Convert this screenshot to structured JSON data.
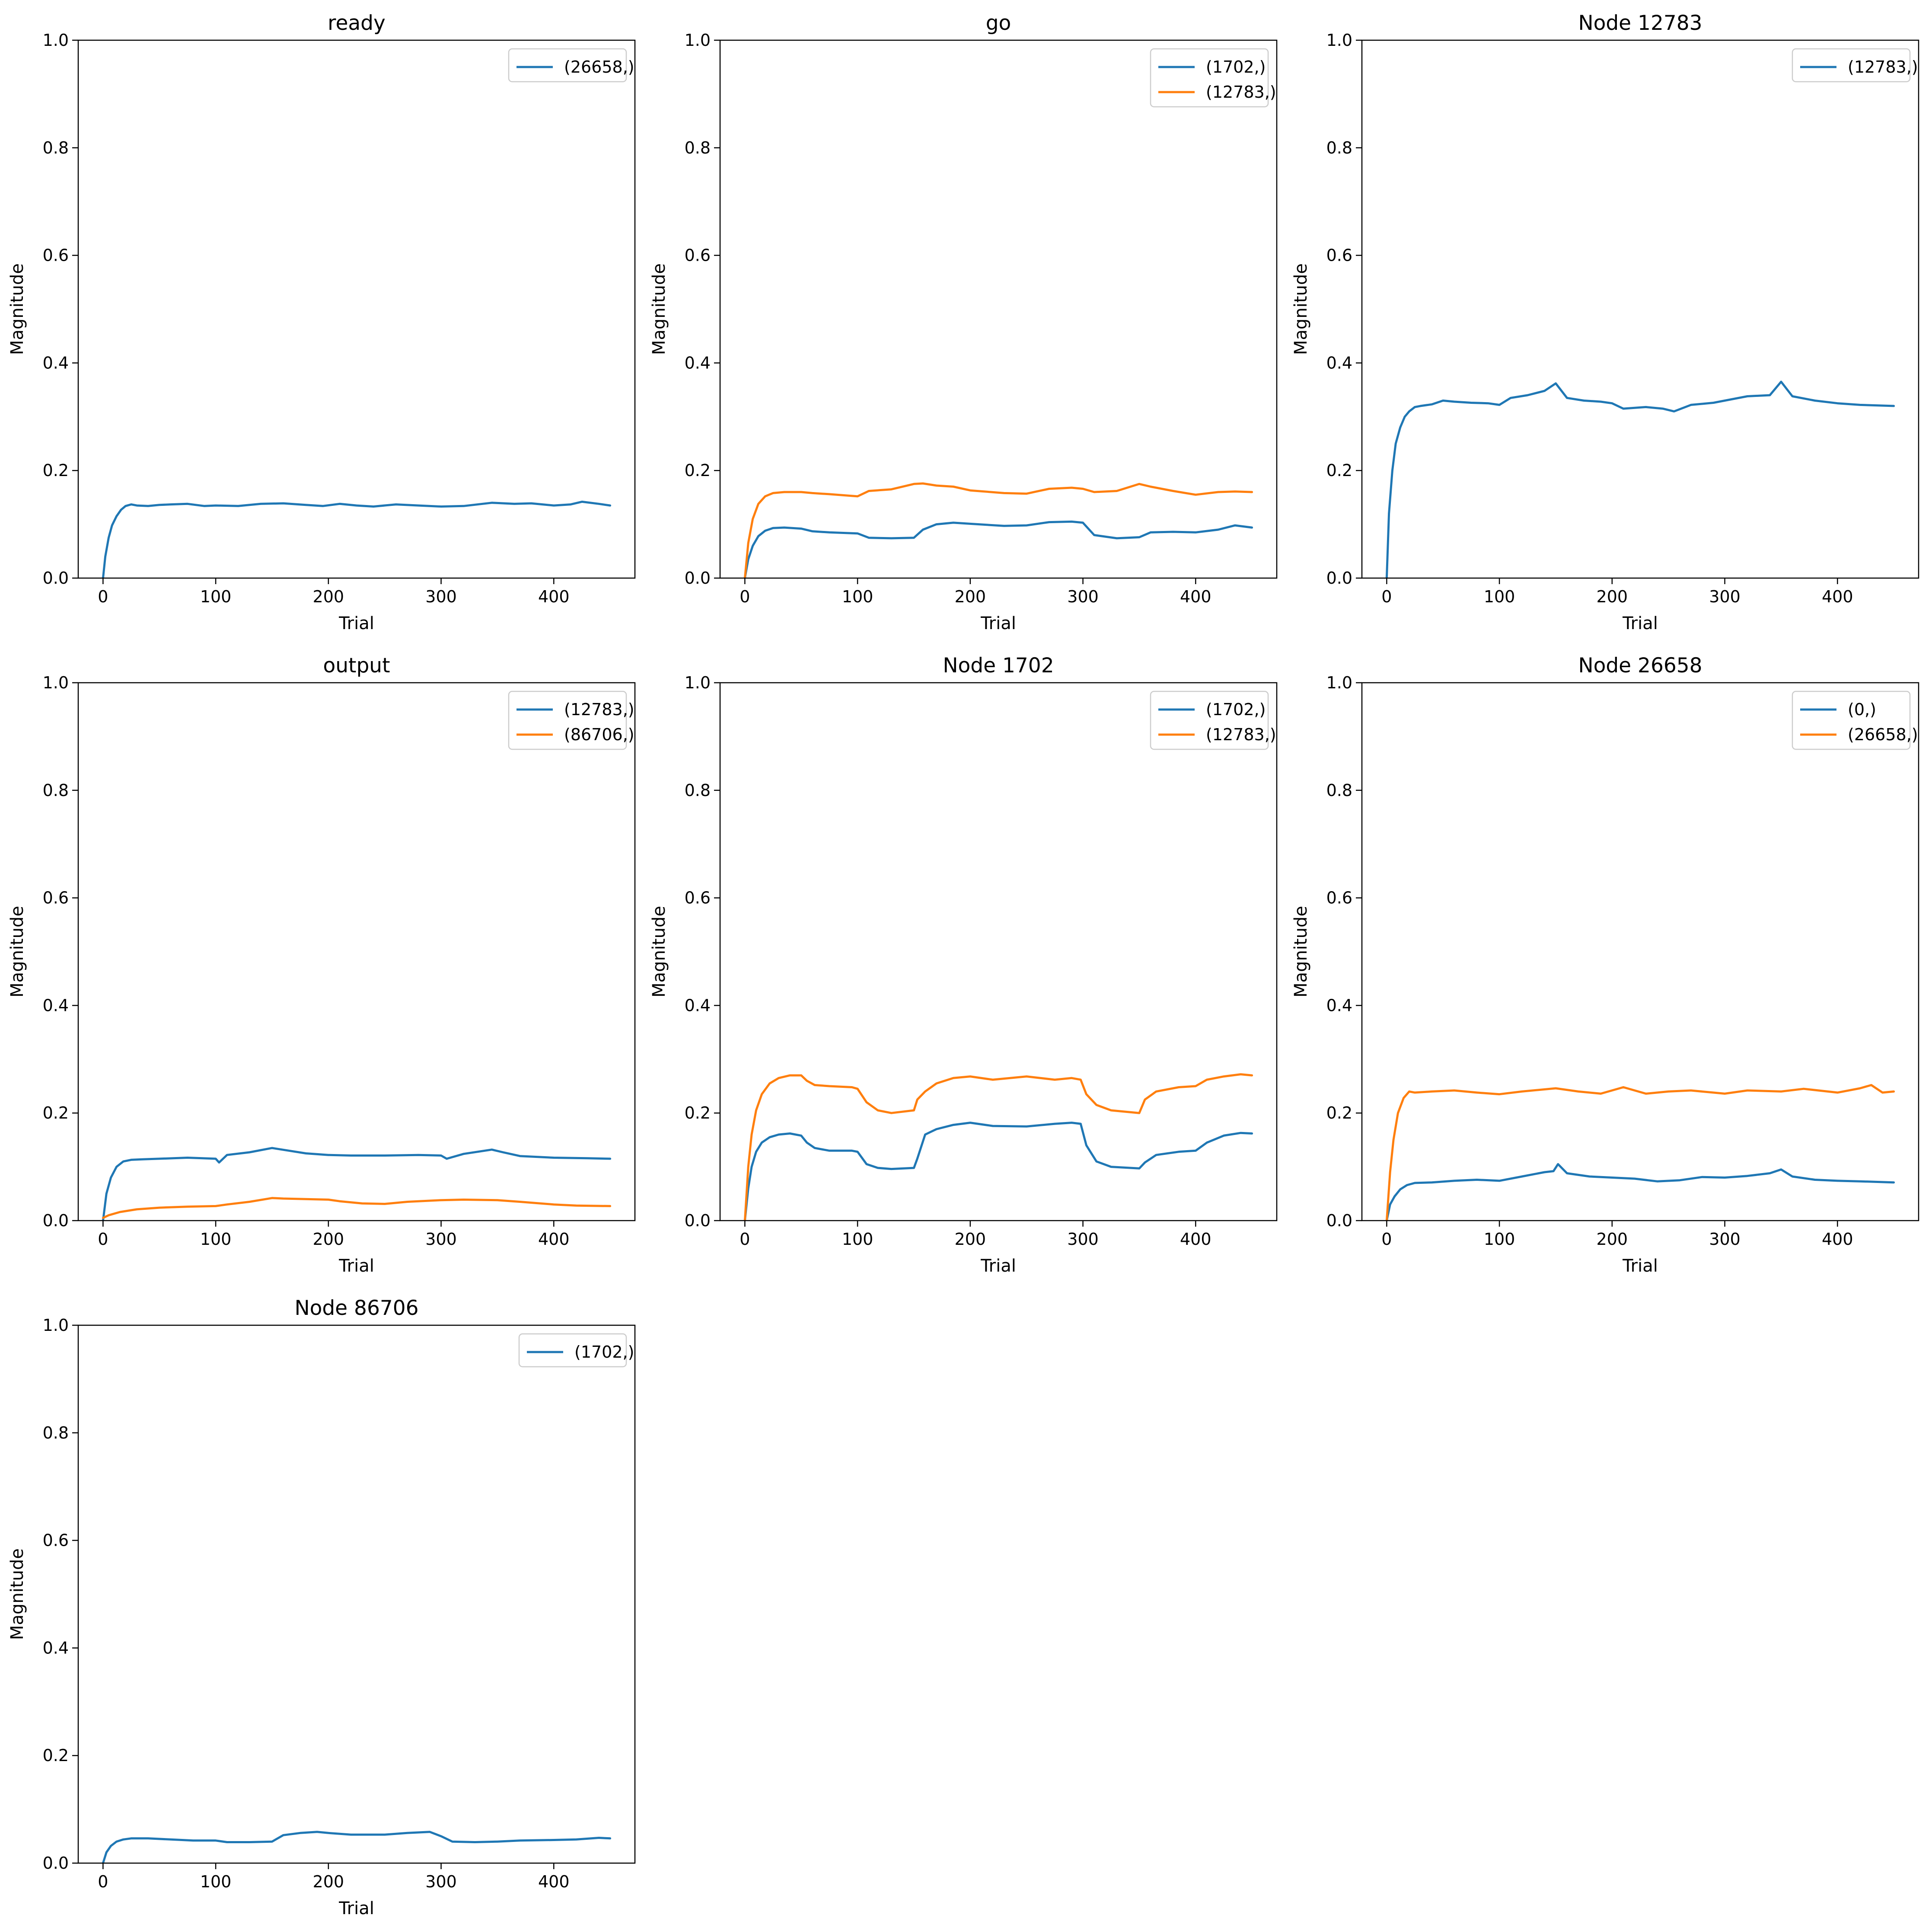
{
  "figure": {
    "colors": {
      "series_1": "#1f77b4",
      "series_2": "#ff7f0e",
      "axes": "#000000",
      "legend_border": "#cccccc"
    }
  },
  "chart_data": [
    {
      "type": "line",
      "title": "ready",
      "xlabel": "Trial",
      "ylabel": "Magnitude",
      "xlim": [
        -22,
        472
      ],
      "ylim": [
        0,
        1
      ],
      "xticks": [
        0,
        100,
        200,
        300,
        400
      ],
      "yticks": [
        0.0,
        0.2,
        0.4,
        0.6,
        0.8,
        1.0
      ],
      "ytick_labels": [
        "0.0",
        "0.2",
        "0.4",
        "0.6",
        "0.8",
        "1.0"
      ],
      "grid": false,
      "legend_position": "upper right",
      "series": [
        {
          "name": "(26658,)",
          "color": "#1f77b4",
          "x": [
            0,
            2,
            5,
            8,
            12,
            16,
            20,
            25,
            30,
            40,
            50,
            60,
            75,
            90,
            100,
            120,
            140,
            160,
            180,
            195,
            210,
            225,
            240,
            260,
            280,
            300,
            320,
            345,
            365,
            380,
            400,
            415,
            425,
            440,
            450
          ],
          "y": [
            0.0,
            0.04,
            0.075,
            0.098,
            0.115,
            0.127,
            0.134,
            0.137,
            0.135,
            0.134,
            0.136,
            0.137,
            0.138,
            0.134,
            0.135,
            0.134,
            0.138,
            0.139,
            0.136,
            0.134,
            0.138,
            0.135,
            0.133,
            0.137,
            0.135,
            0.133,
            0.134,
            0.14,
            0.138,
            0.139,
            0.135,
            0.137,
            0.142,
            0.138,
            0.135
          ]
        }
      ]
    },
    {
      "type": "line",
      "title": "go",
      "xlabel": "Trial",
      "ylabel": "Magnitude",
      "xlim": [
        -22,
        472
      ],
      "ylim": [
        0,
        1
      ],
      "xticks": [
        0,
        100,
        200,
        300,
        400
      ],
      "yticks": [
        0.0,
        0.2,
        0.4,
        0.6,
        0.8,
        1.0
      ],
      "ytick_labels": [
        "0.0",
        "0.2",
        "0.4",
        "0.6",
        "0.8",
        "1.0"
      ],
      "grid": false,
      "legend_position": "upper right",
      "series": [
        {
          "name": "(1702,)",
          "color": "#1f77b4",
          "x": [
            0,
            3,
            7,
            12,
            18,
            25,
            35,
            50,
            60,
            75,
            100,
            110,
            130,
            150,
            158,
            170,
            185,
            200,
            230,
            250,
            270,
            290,
            300,
            310,
            330,
            350,
            360,
            380,
            400,
            420,
            435,
            450
          ],
          "y": [
            0.0,
            0.035,
            0.06,
            0.078,
            0.088,
            0.093,
            0.094,
            0.092,
            0.087,
            0.085,
            0.083,
            0.075,
            0.074,
            0.075,
            0.09,
            0.1,
            0.103,
            0.101,
            0.097,
            0.098,
            0.104,
            0.105,
            0.103,
            0.08,
            0.074,
            0.076,
            0.085,
            0.086,
            0.085,
            0.09,
            0.098,
            0.094
          ]
        },
        {
          "name": "(12783,)",
          "color": "#ff7f0e",
          "x": [
            0,
            3,
            7,
            12,
            18,
            25,
            35,
            50,
            60,
            75,
            100,
            110,
            130,
            150,
            158,
            170,
            185,
            200,
            230,
            250,
            270,
            290,
            300,
            310,
            330,
            350,
            360,
            380,
            400,
            420,
            435,
            450
          ],
          "y": [
            0.0,
            0.065,
            0.11,
            0.138,
            0.152,
            0.158,
            0.16,
            0.16,
            0.158,
            0.156,
            0.152,
            0.162,
            0.165,
            0.175,
            0.176,
            0.172,
            0.17,
            0.163,
            0.158,
            0.157,
            0.166,
            0.168,
            0.166,
            0.16,
            0.162,
            0.175,
            0.17,
            0.162,
            0.155,
            0.16,
            0.161,
            0.16
          ]
        }
      ]
    },
    {
      "type": "line",
      "title": "Node 12783",
      "xlabel": "Trial",
      "ylabel": "Magnitude",
      "xlim": [
        -22,
        472
      ],
      "ylim": [
        0,
        1
      ],
      "xticks": [
        0,
        100,
        200,
        300,
        400
      ],
      "yticks": [
        0.0,
        0.2,
        0.4,
        0.6,
        0.8,
        1.0
      ],
      "ytick_labels": [
        "0.0",
        "0.2",
        "0.4",
        "0.6",
        "0.8",
        "1.0"
      ],
      "grid": false,
      "legend_position": "upper right",
      "series": [
        {
          "name": "(12783,)",
          "color": "#1f77b4",
          "x": [
            0,
            2,
            5,
            8,
            12,
            16,
            20,
            25,
            30,
            40,
            50,
            60,
            75,
            90,
            100,
            110,
            125,
            140,
            150,
            160,
            175,
            190,
            200,
            210,
            230,
            245,
            255,
            270,
            290,
            300,
            320,
            340,
            350,
            360,
            380,
            400,
            420,
            450
          ],
          "y": [
            0.0,
            0.12,
            0.2,
            0.25,
            0.28,
            0.3,
            0.31,
            0.318,
            0.32,
            0.323,
            0.33,
            0.328,
            0.326,
            0.325,
            0.322,
            0.335,
            0.34,
            0.348,
            0.362,
            0.335,
            0.33,
            0.328,
            0.325,
            0.315,
            0.318,
            0.315,
            0.31,
            0.322,
            0.326,
            0.33,
            0.338,
            0.34,
            0.365,
            0.338,
            0.33,
            0.325,
            0.322,
            0.32
          ]
        }
      ]
    },
    {
      "type": "line",
      "title": "output",
      "xlabel": "Trial",
      "ylabel": "Magnitude",
      "xlim": [
        -22,
        472
      ],
      "ylim": [
        0,
        1
      ],
      "xticks": [
        0,
        100,
        200,
        300,
        400
      ],
      "yticks": [
        0.0,
        0.2,
        0.4,
        0.6,
        0.8,
        1.0
      ],
      "ytick_labels": [
        "0.0",
        "0.2",
        "0.4",
        "0.6",
        "0.8",
        "1.0"
      ],
      "grid": false,
      "legend_position": "upper right",
      "series": [
        {
          "name": "(12783,)",
          "color": "#1f77b4",
          "x": [
            0,
            3,
            7,
            12,
            18,
            25,
            35,
            50,
            75,
            100,
            103,
            110,
            130,
            150,
            165,
            180,
            200,
            220,
            250,
            280,
            300,
            305,
            320,
            345,
            355,
            370,
            400,
            430,
            450
          ],
          "y": [
            0.0,
            0.05,
            0.08,
            0.1,
            0.11,
            0.113,
            0.114,
            0.115,
            0.117,
            0.115,
            0.108,
            0.122,
            0.127,
            0.135,
            0.13,
            0.125,
            0.122,
            0.121,
            0.121,
            0.122,
            0.121,
            0.115,
            0.124,
            0.132,
            0.127,
            0.12,
            0.117,
            0.116,
            0.115
          ]
        },
        {
          "name": "(86706,)",
          "color": "#ff7f0e",
          "x": [
            0,
            5,
            15,
            30,
            50,
            75,
            100,
            110,
            130,
            150,
            160,
            180,
            200,
            210,
            230,
            250,
            270,
            300,
            320,
            350,
            370,
            400,
            420,
            450
          ],
          "y": [
            0.005,
            0.01,
            0.016,
            0.021,
            0.024,
            0.026,
            0.027,
            0.03,
            0.035,
            0.042,
            0.041,
            0.04,
            0.039,
            0.036,
            0.032,
            0.031,
            0.035,
            0.038,
            0.039,
            0.038,
            0.035,
            0.03,
            0.028,
            0.027
          ]
        }
      ]
    },
    {
      "type": "line",
      "title": "Node 1702",
      "xlabel": "Trial",
      "ylabel": "Magnitude",
      "xlim": [
        -22,
        472
      ],
      "ylim": [
        0,
        1
      ],
      "xticks": [
        0,
        100,
        200,
        300,
        400
      ],
      "yticks": [
        0.0,
        0.2,
        0.4,
        0.6,
        0.8,
        1.0
      ],
      "ytick_labels": [
        "0.0",
        "0.2",
        "0.4",
        "0.6",
        "0.8",
        "1.0"
      ],
      "grid": false,
      "legend_position": "upper right",
      "series": [
        {
          "name": "(1702,)",
          "color": "#1f77b4",
          "x": [
            0,
            3,
            6,
            10,
            15,
            22,
            30,
            40,
            50,
            55,
            62,
            75,
            95,
            100,
            108,
            118,
            130,
            150,
            153,
            160,
            170,
            185,
            200,
            220,
            250,
            275,
            290,
            298,
            303,
            312,
            325,
            350,
            355,
            365,
            385,
            400,
            410,
            425,
            440,
            450
          ],
          "y": [
            0.0,
            0.06,
            0.1,
            0.128,
            0.145,
            0.155,
            0.16,
            0.162,
            0.158,
            0.145,
            0.135,
            0.13,
            0.13,
            0.128,
            0.105,
            0.098,
            0.096,
            0.098,
            0.115,
            0.16,
            0.17,
            0.178,
            0.182,
            0.176,
            0.175,
            0.18,
            0.182,
            0.18,
            0.14,
            0.11,
            0.1,
            0.097,
            0.108,
            0.122,
            0.128,
            0.13,
            0.145,
            0.158,
            0.163,
            0.162
          ]
        },
        {
          "name": "(12783,)",
          "color": "#ff7f0e",
          "x": [
            0,
            3,
            6,
            10,
            15,
            22,
            30,
            40,
            50,
            55,
            62,
            75,
            95,
            100,
            108,
            118,
            130,
            150,
            153,
            160,
            170,
            185,
            200,
            220,
            250,
            275,
            290,
            298,
            303,
            312,
            325,
            350,
            355,
            365,
            385,
            400,
            410,
            425,
            440,
            450
          ],
          "y": [
            0.0,
            0.1,
            0.16,
            0.205,
            0.235,
            0.255,
            0.265,
            0.27,
            0.27,
            0.26,
            0.252,
            0.25,
            0.248,
            0.245,
            0.22,
            0.205,
            0.2,
            0.205,
            0.225,
            0.24,
            0.255,
            0.265,
            0.268,
            0.262,
            0.268,
            0.262,
            0.265,
            0.262,
            0.235,
            0.215,
            0.205,
            0.2,
            0.225,
            0.24,
            0.248,
            0.25,
            0.262,
            0.268,
            0.272,
            0.27
          ]
        }
      ]
    },
    {
      "type": "line",
      "title": "Node 26658",
      "xlabel": "Trial",
      "ylabel": "Magnitude",
      "xlim": [
        -22,
        472
      ],
      "ylim": [
        0,
        1
      ],
      "xticks": [
        0,
        100,
        200,
        300,
        400
      ],
      "yticks": [
        0.0,
        0.2,
        0.4,
        0.6,
        0.8,
        1.0
      ],
      "ytick_labels": [
        "0.0",
        "0.2",
        "0.4",
        "0.6",
        "0.8",
        "1.0"
      ],
      "grid": false,
      "legend_position": "upper right",
      "series": [
        {
          "name": "(0,)",
          "color": "#1f77b4",
          "x": [
            0,
            3,
            7,
            12,
            18,
            25,
            40,
            60,
            80,
            100,
            120,
            140,
            148,
            152,
            160,
            180,
            200,
            220,
            240,
            260,
            280,
            300,
            320,
            340,
            350,
            360,
            380,
            400,
            420,
            450
          ],
          "y": [
            0.0,
            0.03,
            0.045,
            0.058,
            0.066,
            0.07,
            0.071,
            0.074,
            0.076,
            0.074,
            0.082,
            0.09,
            0.092,
            0.105,
            0.088,
            0.082,
            0.08,
            0.078,
            0.073,
            0.075,
            0.081,
            0.08,
            0.083,
            0.088,
            0.095,
            0.082,
            0.076,
            0.074,
            0.073,
            0.071
          ]
        },
        {
          "name": "(26658,)",
          "color": "#ff7f0e",
          "x": [
            0,
            3,
            6,
            10,
            15,
            20,
            25,
            40,
            60,
            80,
            100,
            120,
            150,
            170,
            190,
            210,
            230,
            250,
            270,
            300,
            320,
            350,
            370,
            400,
            420,
            430,
            440,
            450
          ],
          "y": [
            0.0,
            0.09,
            0.15,
            0.2,
            0.228,
            0.24,
            0.238,
            0.24,
            0.242,
            0.238,
            0.235,
            0.24,
            0.246,
            0.24,
            0.236,
            0.248,
            0.236,
            0.24,
            0.242,
            0.236,
            0.242,
            0.24,
            0.245,
            0.238,
            0.246,
            0.252,
            0.238,
            0.24
          ]
        }
      ]
    },
    {
      "type": "line",
      "title": "Node 86706",
      "xlabel": "Trial",
      "ylabel": "Magnitude",
      "xlim": [
        -22,
        472
      ],
      "ylim": [
        0,
        1
      ],
      "xticks": [
        0,
        100,
        200,
        300,
        400
      ],
      "yticks": [
        0.0,
        0.2,
        0.4,
        0.6,
        0.8,
        1.0
      ],
      "ytick_labels": [
        "0.0",
        "0.2",
        "0.4",
        "0.6",
        "0.8",
        "1.0"
      ],
      "grid": false,
      "legend_position": "upper right",
      "series": [
        {
          "name": "(1702,)",
          "color": "#1f77b4",
          "x": [
            0,
            3,
            7,
            12,
            18,
            25,
            40,
            60,
            80,
            100,
            110,
            130,
            150,
            160,
            175,
            190,
            200,
            220,
            250,
            270,
            290,
            300,
            310,
            330,
            350,
            370,
            400,
            420,
            440,
            450
          ],
          "y": [
            0.0,
            0.02,
            0.032,
            0.04,
            0.044,
            0.046,
            0.046,
            0.044,
            0.042,
            0.042,
            0.039,
            0.039,
            0.04,
            0.052,
            0.056,
            0.058,
            0.056,
            0.053,
            0.053,
            0.056,
            0.058,
            0.05,
            0.04,
            0.039,
            0.04,
            0.042,
            0.043,
            0.044,
            0.047,
            0.046
          ]
        }
      ]
    }
  ]
}
